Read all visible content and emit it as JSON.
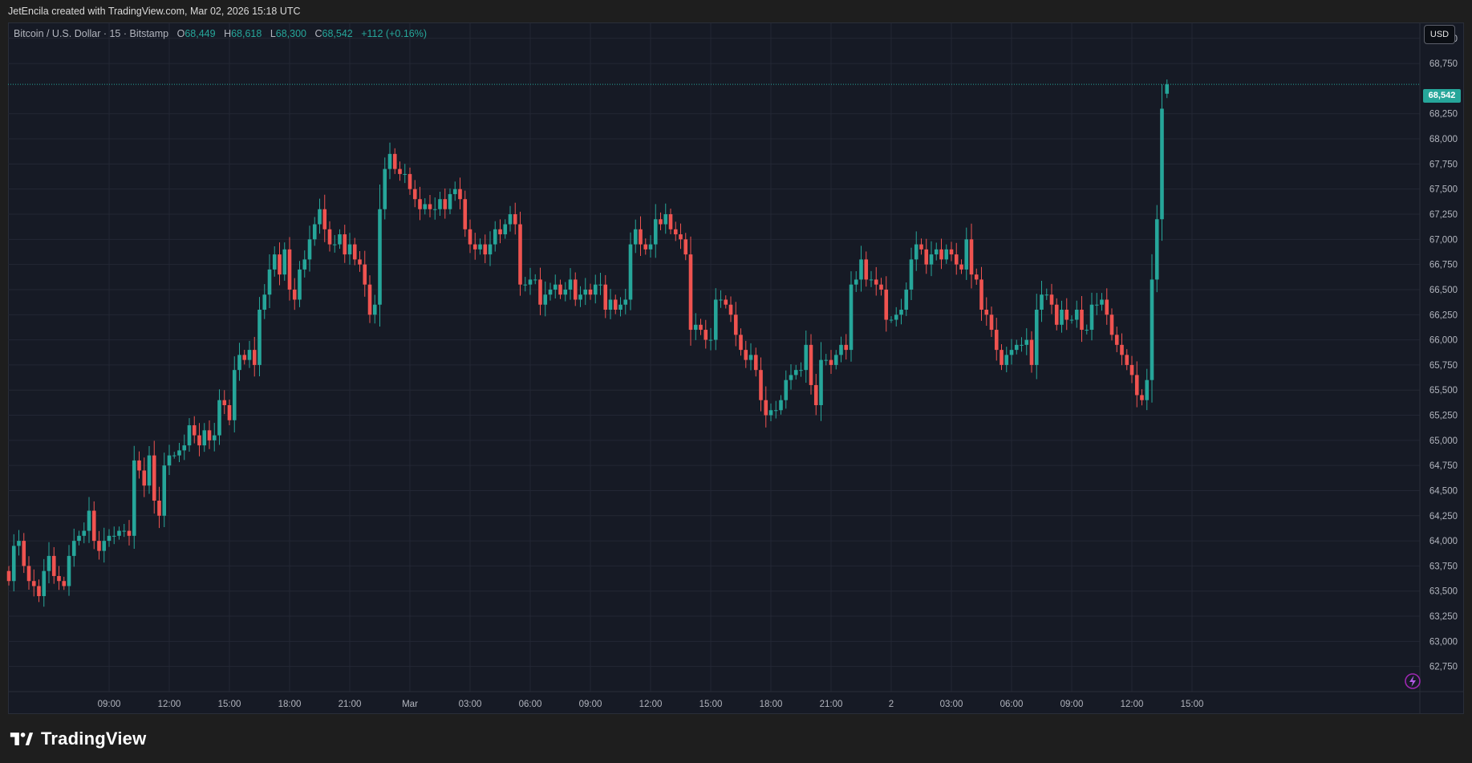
{
  "caption": "JetEncila created with TradingView.com, Mar 02, 2026 15:18 UTC",
  "legend": {
    "symbol": "Bitcoin / U.S. Dollar · 15 · Bitstamp",
    "o_label": "O",
    "o_value": "68,449",
    "h_label": "H",
    "h_value": "68,618",
    "l_label": "L",
    "l_value": "68,300",
    "c_label": "C",
    "c_value": "68,542",
    "change": "+112 (+0.16%)"
  },
  "currency_button": "USD",
  "last_price_label": "68,542",
  "brand": {
    "name": "TradingView",
    "logo_icon": "tradingview-logo-icon"
  },
  "colors": {
    "up": "#26a69a",
    "down": "#ef5350",
    "background": "#161a25",
    "grid": "#232734",
    "axis_text": "#b2b5be"
  },
  "chart_data": {
    "type": "candlestick",
    "title": "Bitcoin / U.S. Dollar · 15 · Bitstamp",
    "grid": true,
    "ylim": [
      62500,
      69150
    ],
    "y_ticks": [
      62750,
      63000,
      63250,
      63500,
      63750,
      64000,
      64250,
      64500,
      64750,
      65000,
      65250,
      65500,
      65750,
      66000,
      66250,
      66500,
      66750,
      67000,
      67250,
      67500,
      67750,
      68000,
      68250,
      68750,
      69000
    ],
    "y_tick_labels": [
      "62,750",
      "63,000",
      "63,250",
      "63,500",
      "63,750",
      "64,000",
      "64,250",
      "64,500",
      "64,750",
      "65,000",
      "65,250",
      "65,500",
      "65,750",
      "66,000",
      "66,250",
      "66,500",
      "66,750",
      "67,000",
      "67,250",
      "67,500",
      "67,750",
      "68,000",
      "68,250",
      "68,750",
      "69,000"
    ],
    "x_ticks": [
      "09:00",
      "12:00",
      "15:00",
      "18:00",
      "21:00",
      "Mar",
      "03:00",
      "06:00",
      "09:00",
      "12:00",
      "15:00",
      "18:00",
      "21:00",
      "2",
      "03:00",
      "06:00",
      "09:00",
      "12:00",
      "15:00"
    ],
    "bars_per_tick": 12,
    "first_tick_bar_index": 20,
    "last_price": 68542,
    "close": [
      63600,
      63950,
      64000,
      63750,
      63600,
      63550,
      63450,
      63700,
      63850,
      63650,
      63600,
      63550,
      63850,
      64000,
      64050,
      64100,
      64300,
      64000,
      63900,
      64000,
      64050,
      64050,
      64100,
      64100,
      64050,
      64800,
      64700,
      64550,
      64850,
      64400,
      64250,
      64750,
      64850,
      64850,
      64900,
      64950,
      65150,
      65050,
      64950,
      65100,
      65000,
      65050,
      65400,
      65350,
      65200,
      65700,
      65850,
      65800,
      65900,
      65750,
      66300,
      66450,
      66700,
      66850,
      66650,
      66900,
      66500,
      66400,
      66700,
      66800,
      67000,
      67150,
      67300,
      67100,
      66950,
      66950,
      67050,
      66850,
      66950,
      66800,
      66750,
      66550,
      66250,
      66350,
      67300,
      67700,
      67850,
      67700,
      67650,
      67650,
      67500,
      67400,
      67300,
      67350,
      67300,
      67300,
      67400,
      67300,
      67450,
      67500,
      67400,
      67100,
      66950,
      66900,
      66950,
      66850,
      66950,
      67100,
      67050,
      67150,
      67250,
      67150,
      66550,
      66550,
      66600,
      66600,
      66350,
      66450,
      66500,
      66550,
      66450,
      66500,
      66600,
      66400,
      66450,
      66500,
      66450,
      66550,
      66550,
      66300,
      66400,
      66300,
      66350,
      66400,
      66950,
      67100,
      66950,
      66900,
      66950,
      67200,
      67150,
      67250,
      67100,
      67050,
      67000,
      66850,
      66100,
      66150,
      66100,
      66000,
      66000,
      66400,
      66400,
      66350,
      66250,
      66050,
      65900,
      65800,
      65850,
      65700,
      65400,
      65250,
      65300,
      65300,
      65400,
      65600,
      65650,
      65700,
      65700,
      65950,
      65550,
      65350,
      65800,
      65800,
      65750,
      65850,
      65950,
      65900,
      66550,
      66600,
      66800,
      66600,
      66600,
      66550,
      66500,
      66200,
      66200,
      66250,
      66300,
      66500,
      66800,
      66950,
      66900,
      66750,
      66850,
      66900,
      66800,
      66900,
      66850,
      66750,
      66700,
      67000,
      66650,
      66600,
      66300,
      66250,
      66100,
      65900,
      65750,
      65850,
      65900,
      65950,
      65950,
      66000,
      65750,
      66300,
      66450,
      66450,
      66350,
      66150,
      66300,
      66200,
      66200,
      66300,
      66100,
      66100,
      66350,
      66350,
      66400,
      66250,
      66050,
      65950,
      65850,
      65750,
      65650,
      65450,
      65400,
      65600,
      66600,
      67200,
      68300,
      68542
    ],
    "open": [
      63700,
      63600,
      63950,
      64000,
      63750,
      63600,
      63550,
      63450,
      63700,
      63850,
      63650,
      63600,
      63550,
      63850,
      64000,
      64050,
      64100,
      64300,
      64000,
      63900,
      64000,
      64050,
      64050,
      64100,
      64100,
      64050,
      64800,
      64700,
      64550,
      64850,
      64400,
      64250,
      64750,
      64850,
      64850,
      64900,
      64950,
      65150,
      65050,
      64950,
      65100,
      65000,
      65050,
      65400,
      65350,
      65200,
      65700,
      65850,
      65800,
      65900,
      65750,
      66300,
      66450,
      66700,
      66850,
      66650,
      66900,
      66500,
      66400,
      66700,
      66800,
      67000,
      67150,
      67300,
      67100,
      66950,
      66950,
      67050,
      66850,
      66950,
      66800,
      66750,
      66550,
      66250,
      66350,
      67300,
      67700,
      67850,
      67700,
      67650,
      67650,
      67500,
      67400,
      67300,
      67350,
      67300,
      67300,
      67400,
      67300,
      67450,
      67500,
      67400,
      67100,
      66950,
      66900,
      66950,
      66850,
      66950,
      67100,
      67050,
      67150,
      67250,
      67150,
      66550,
      66550,
      66600,
      66600,
      66350,
      66450,
      66500,
      66550,
      66450,
      66500,
      66600,
      66400,
      66450,
      66500,
      66450,
      66550,
      66550,
      66300,
      66400,
      66300,
      66350,
      66400,
      66950,
      67100,
      66950,
      66900,
      66950,
      67200,
      67150,
      67250,
      67100,
      67050,
      67000,
      66850,
      66100,
      66150,
      66100,
      66000,
      66000,
      66400,
      66400,
      66350,
      66250,
      66050,
      65900,
      65800,
      65850,
      65700,
      65400,
      65250,
      65300,
      65300,
      65400,
      65600,
      65650,
      65700,
      65700,
      65950,
      65550,
      65350,
      65800,
      65800,
      65750,
      65850,
      65950,
      65900,
      66550,
      66600,
      66800,
      66600,
      66600,
      66550,
      66500,
      66200,
      66200,
      66250,
      66300,
      66500,
      66800,
      66950,
      66900,
      66750,
      66850,
      66900,
      66800,
      66900,
      66850,
      66750,
      66700,
      67000,
      66650,
      66600,
      66300,
      66250,
      66100,
      65900,
      65750,
      65850,
      65900,
      65950,
      65950,
      66000,
      65750,
      66300,
      66450,
      66450,
      66350,
      66150,
      66300,
      66200,
      66200,
      66300,
      66100,
      66100,
      66350,
      66350,
      66400,
      66250,
      66050,
      65950,
      65850,
      65750,
      65650,
      65450,
      65400,
      65600,
      66600,
      67200,
      68449
    ]
  }
}
